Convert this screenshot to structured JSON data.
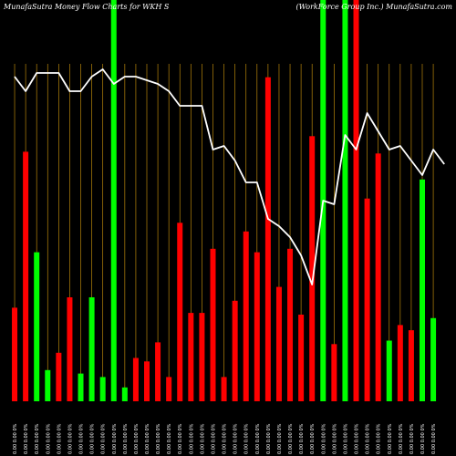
{
  "header": {
    "left": "MunafaSutra  Money Flow  Charts for WKH                    S",
    "right": "(WorkForce    Group Inc.) MunafaSutra.com"
  },
  "colors": {
    "background": "#000000",
    "up": "#ff0000",
    "down": "#00ff00",
    "price_line": "#ffffff",
    "grid": "#b8860b"
  },
  "chart_data": {
    "type": "bar",
    "title": "",
    "bars": [
      {
        "label": "0.00 0.00 0%",
        "volume": 27,
        "dir": "up"
      },
      {
        "label": "0.00 0.00 0%",
        "volume": 72,
        "dir": "up"
      },
      {
        "label": "0.00 0.00 0%",
        "volume": 43,
        "dir": "down"
      },
      {
        "label": "0.00 0.00 0%",
        "volume": 9,
        "dir": "down"
      },
      {
        "label": "0.00 0.00 0%",
        "volume": 14,
        "dir": "up"
      },
      {
        "label": "0.00 0.00 0%",
        "volume": 30,
        "dir": "up"
      },
      {
        "label": "0.00 0.00 0%",
        "volume": 8,
        "dir": "down"
      },
      {
        "label": "0.00 0.00 0%",
        "volume": 30,
        "dir": "down"
      },
      {
        "label": "0.00 0.00 0%",
        "volume": 7,
        "dir": "down"
      },
      {
        "label": "0.00 0.00 0%",
        "volume": 100,
        "dir": "down"
      },
      {
        "label": "0.00 0.00 0%",
        "volume": 4,
        "dir": "down"
      },
      {
        "label": "0.00 0.00 0%",
        "volume": 12.5,
        "dir": "up"
      },
      {
        "label": "0.00 0.00 0%",
        "volume": 11.5,
        "dir": "up"
      },
      {
        "label": "0.00 0.00 0%",
        "volume": 17,
        "dir": "up"
      },
      {
        "label": "0.00 0.00 0%",
        "volume": 7,
        "dir": "up"
      },
      {
        "label": "0.00 0.00 0%",
        "volume": 51.5,
        "dir": "up"
      },
      {
        "label": "0.00 0.00 0%",
        "volume": 25.5,
        "dir": "up"
      },
      {
        "label": "0.00 0.00 0%",
        "volume": 25.5,
        "dir": "up"
      },
      {
        "label": "0.00 0.00 0%",
        "volume": 44,
        "dir": "up"
      },
      {
        "label": "0.00 0.00 0%",
        "volume": 7,
        "dir": "up"
      },
      {
        "label": "0.00 0.00 0%",
        "volume": 29,
        "dir": "up"
      },
      {
        "label": "0.00 0.00 0%",
        "volume": 49,
        "dir": "up"
      },
      {
        "label": "0.00 0.00 0%",
        "volume": 43,
        "dir": "up"
      },
      {
        "label": "0.00 0.00 0%",
        "volume": 93.5,
        "dir": "up"
      },
      {
        "label": "0.00 0.00 0%",
        "volume": 33,
        "dir": "up"
      },
      {
        "label": "0.00 0.00 0%",
        "volume": 44,
        "dir": "up"
      },
      {
        "label": "0.00 0.00 0%",
        "volume": 25,
        "dir": "up"
      },
      {
        "label": "0.00 0.00 0%",
        "volume": 76.5,
        "dir": "up"
      },
      {
        "label": "0.00 0.00 0%",
        "volume": 100,
        "dir": "down"
      },
      {
        "label": "0.00 0.00 0%",
        "volume": 16.5,
        "dir": "up"
      },
      {
        "label": "0.00 0.00 0%",
        "volume": 100,
        "dir": "down"
      },
      {
        "label": "0.00 0.00 0%",
        "volume": 100,
        "dir": "up"
      },
      {
        "label": "0.00 0.00 0%",
        "volume": 58.5,
        "dir": "up"
      },
      {
        "label": "0.00 0.00 0%",
        "volume": 71.5,
        "dir": "up"
      },
      {
        "label": "0.00 0.00 0%",
        "volume": 17.5,
        "dir": "down"
      },
      {
        "label": "0.00 0.00 0%",
        "volume": 22,
        "dir": "up"
      },
      {
        "label": "0.00 0.00 0%",
        "volume": 20.5,
        "dir": "up"
      },
      {
        "label": "0.00 0.00 0%",
        "volume": 64,
        "dir": "down"
      },
      {
        "label": "0.00 0.00 0%",
        "volume": 24,
        "dir": "down"
      }
    ],
    "price_series": [
      89,
      85,
      90,
      90,
      90,
      85,
      85,
      89,
      91,
      87,
      89,
      89,
      88,
      87,
      85,
      81,
      81,
      81,
      69,
      70,
      66,
      60,
      60,
      50,
      48,
      45,
      40,
      32,
      55,
      54,
      73,
      69,
      79,
      74,
      69,
      70,
      66,
      62,
      69,
      65
    ]
  }
}
